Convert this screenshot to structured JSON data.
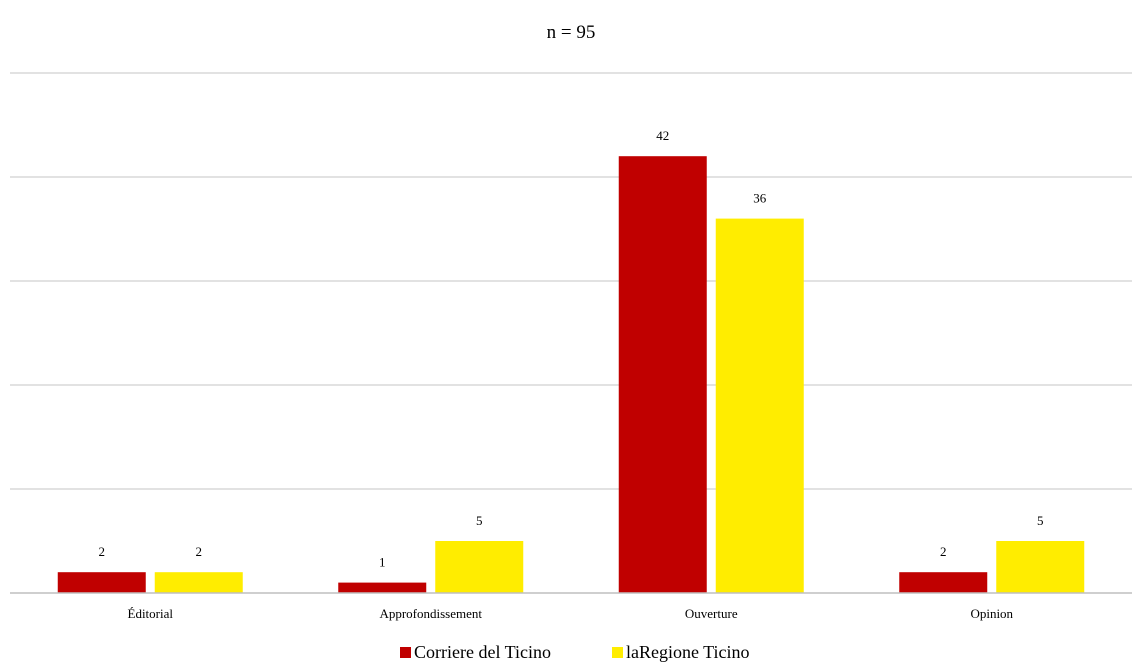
{
  "chart_data": {
    "type": "bar",
    "title": "n = 95",
    "categories": [
      "Éditorial",
      "Approfondissement",
      "Ouverture",
      "Opinion"
    ],
    "series": [
      {
        "name": "Corriere del Ticino",
        "values": [
          2,
          1,
          42,
          2
        ],
        "color": "#c00000"
      },
      {
        "name": "laRegione Ticino",
        "values": [
          2,
          5,
          36,
          5
        ],
        "color": "#ffed00"
      }
    ],
    "ylim": [
      0,
      50
    ],
    "gridlines": [
      10,
      20,
      30,
      40,
      50
    ],
    "grid": true,
    "data_labels": true,
    "legend": "bottom-center"
  }
}
